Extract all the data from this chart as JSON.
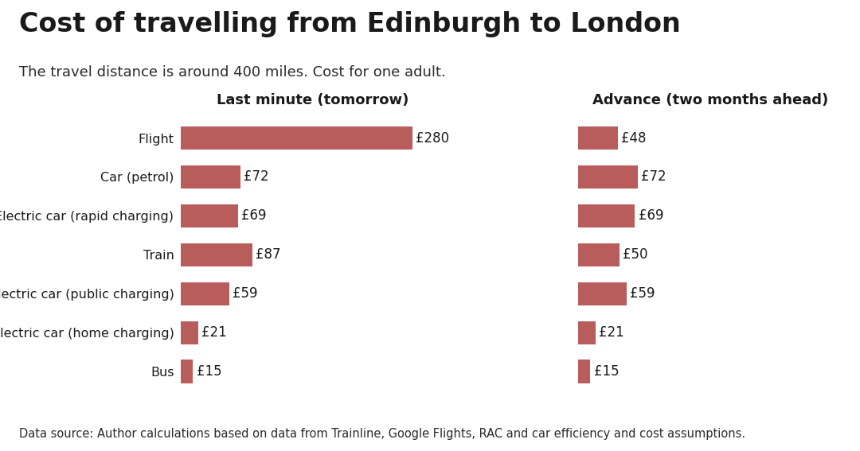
{
  "title": "Cost of travelling from Edinburgh to London",
  "subtitle": "The travel distance is around 400 miles. Cost for one adult.",
  "footnote": "Data source: Author calculations based on data from Trainline, Google Flights, RAC and car efficiency and cost assumptions.",
  "left_panel_title": "Last minute (tomorrow)",
  "right_panel_title": "Advance (two months ahead)",
  "categories": [
    "Flight",
    "Car (petrol)",
    "Electric car (rapid charging)",
    "Train",
    "Electric car (public charging)",
    "Electric car (home charging)",
    "Bus"
  ],
  "last_minute_values": [
    280,
    72,
    69,
    87,
    59,
    21,
    15
  ],
  "advance_values": [
    48,
    72,
    69,
    50,
    59,
    21,
    15
  ],
  "bar_color": "#b85c5c",
  "background_color": "#ffffff",
  "xlim_left": [
    0,
    320
  ],
  "xlim_right": [
    0,
    320
  ],
  "title_fontsize": 24,
  "subtitle_fontsize": 13,
  "label_fontsize": 11.5,
  "value_fontsize": 12,
  "panel_title_fontsize": 13,
  "footnote_fontsize": 10.5
}
